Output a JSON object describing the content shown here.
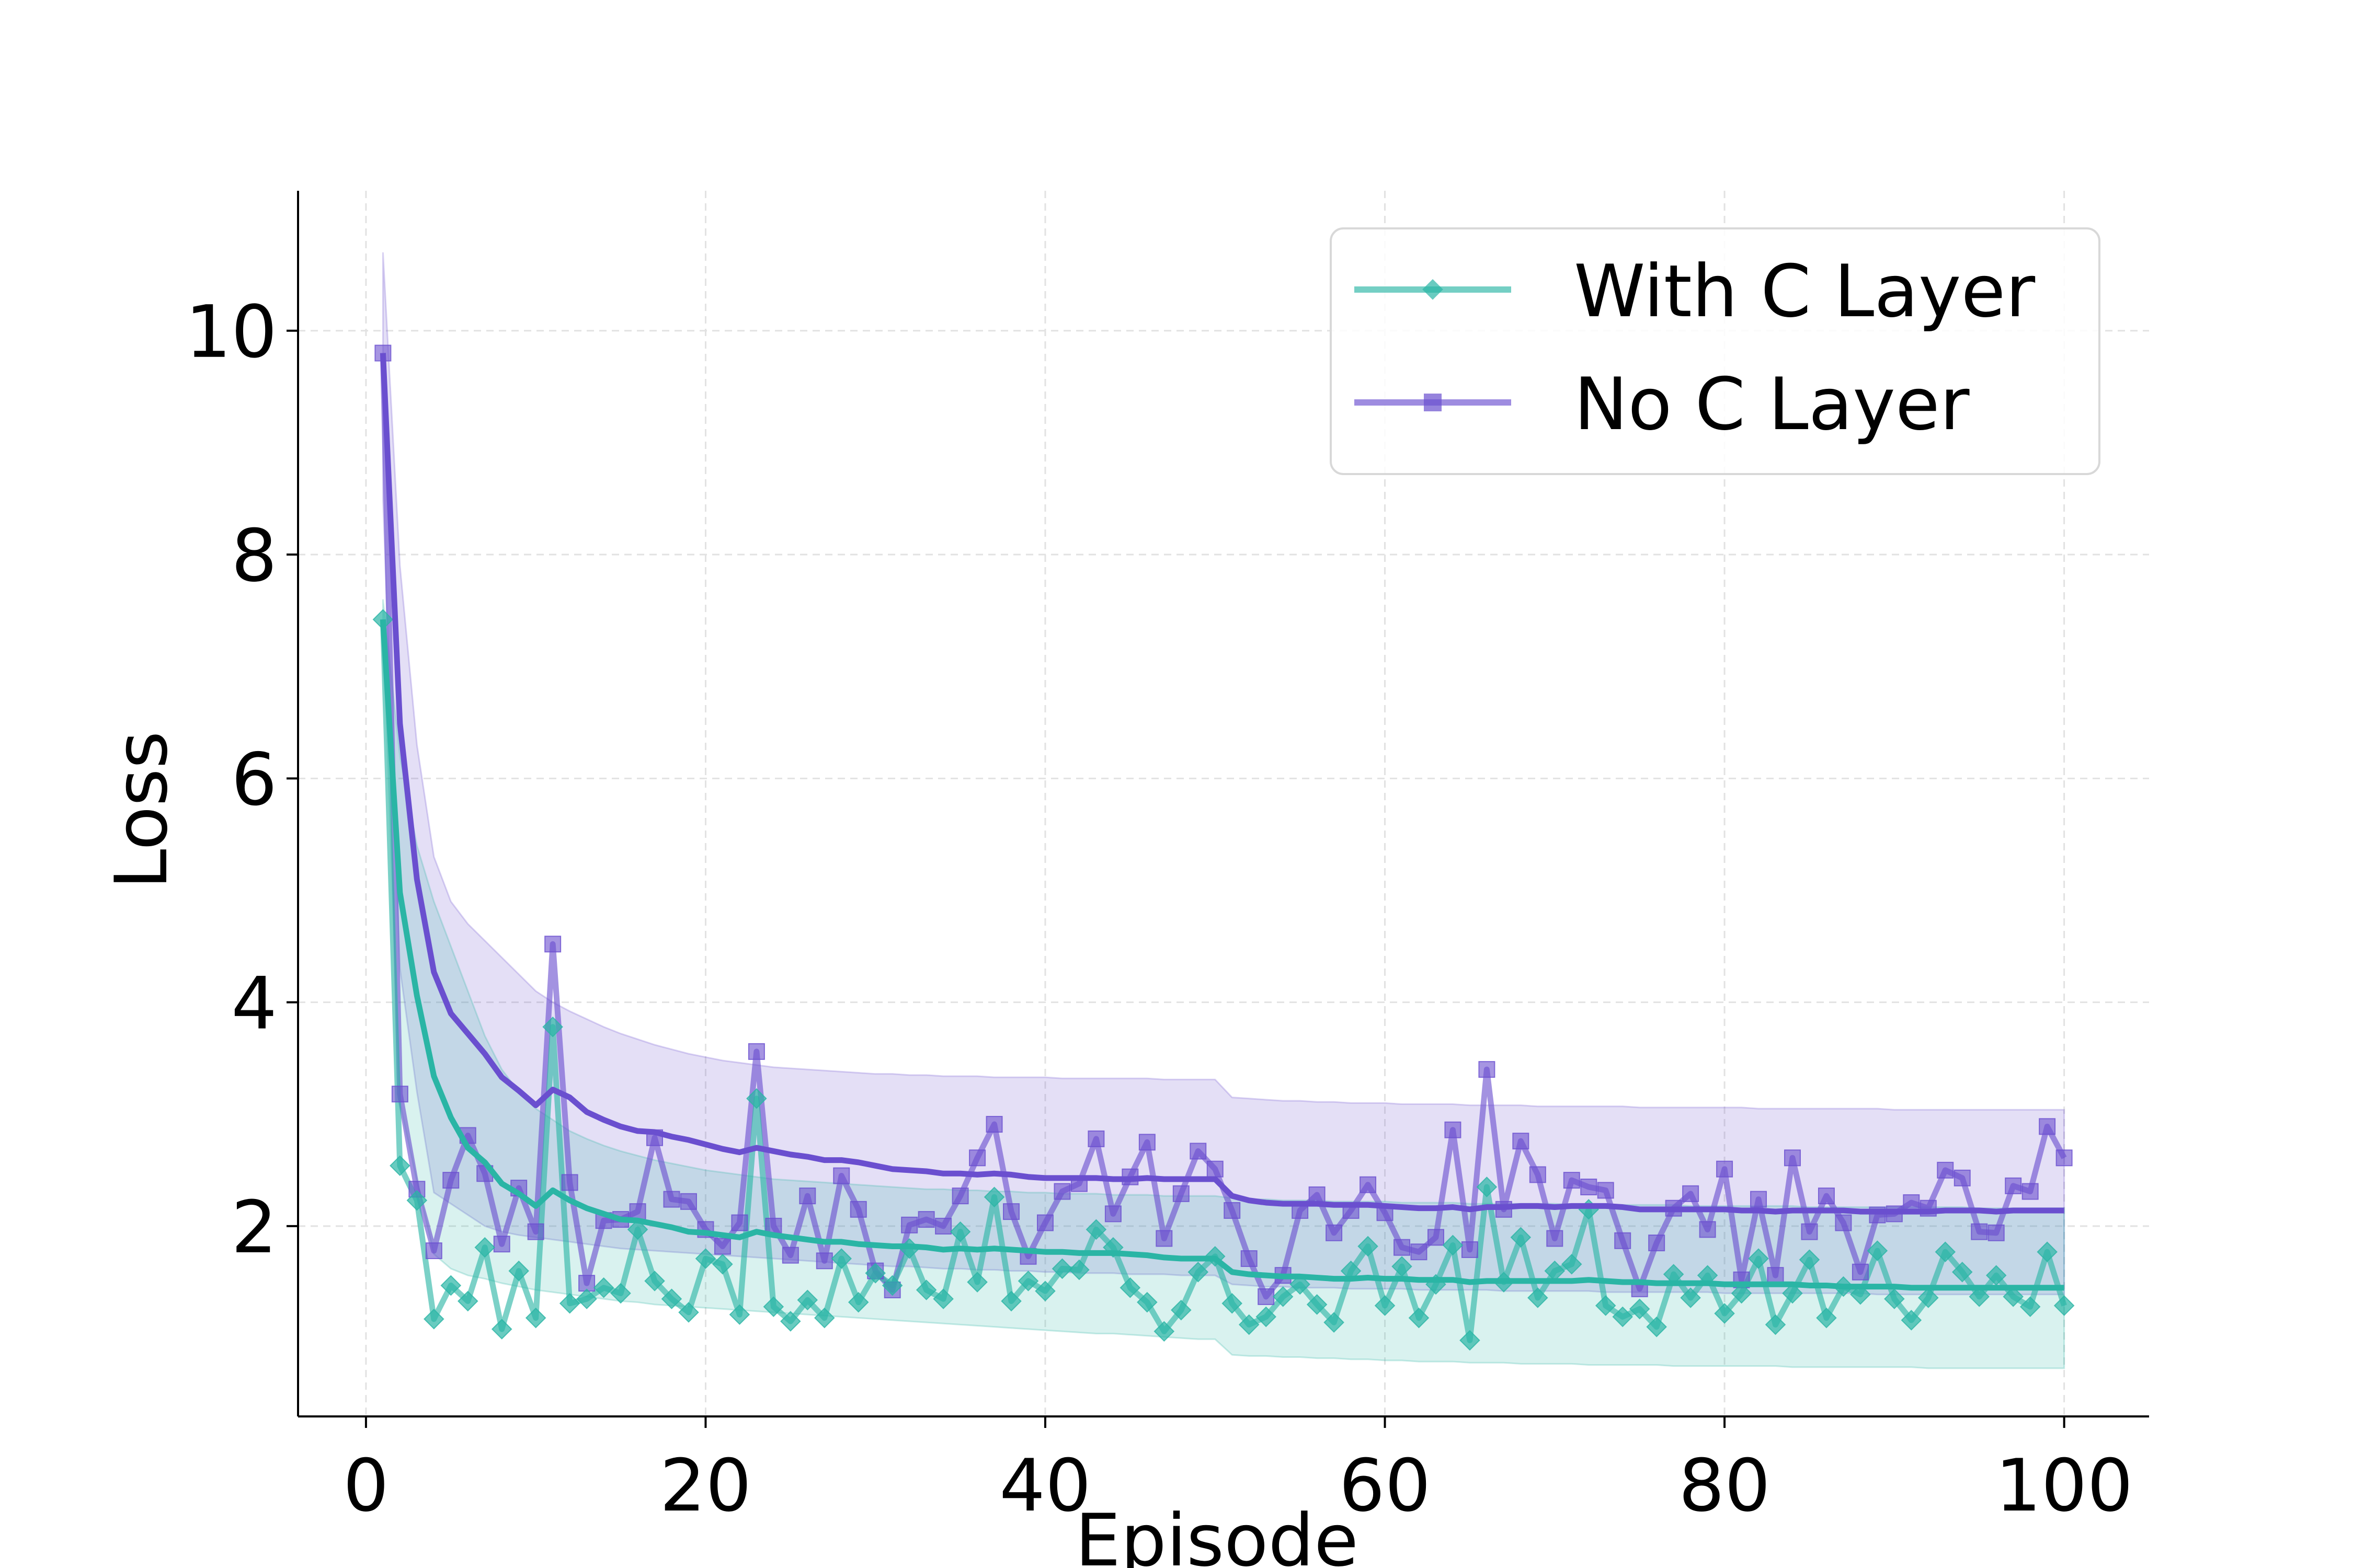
{
  "chart_data": {
    "type": "line",
    "title": "",
    "xlabel": "Episode",
    "ylabel": "Loss",
    "xlim": [
      -4,
      105
    ],
    "ylim": [
      0.3,
      11.25
    ],
    "xticks": [
      0,
      20,
      40,
      60,
      80,
      100
    ],
    "yticks": [
      2,
      4,
      6,
      8,
      10
    ],
    "grid": true,
    "legend_position": "top-right",
    "series": [
      {
        "name": "With C Layer",
        "color": "#2ab5a5",
        "marker": "diamond",
        "raw": [
          7.42,
          2.54,
          2.23,
          1.17,
          1.47,
          1.33,
          1.81,
          1.08,
          1.6,
          1.18,
          3.78,
          1.31,
          1.35,
          1.45,
          1.4,
          1.97,
          1.51,
          1.35,
          1.23,
          1.71,
          1.66,
          1.21,
          3.14,
          1.28,
          1.15,
          1.34,
          1.18,
          1.71,
          1.32,
          1.58,
          1.47,
          1.8,
          1.43,
          1.35,
          1.95,
          1.5,
          2.26,
          1.33,
          1.51,
          1.42,
          1.62,
          1.61,
          1.97,
          1.81,
          1.45,
          1.32,
          1.06,
          1.25,
          1.59,
          1.73,
          1.31,
          1.12,
          1.19,
          1.37,
          1.48,
          1.3,
          1.14,
          1.6,
          1.82,
          1.29,
          1.64,
          1.18,
          1.48,
          1.83,
          0.98,
          2.35,
          1.5,
          1.9,
          1.36,
          1.6,
          1.66,
          2.15,
          1.29,
          1.19,
          1.26,
          1.1,
          1.57,
          1.36,
          1.56,
          1.22,
          1.4,
          1.71,
          1.12,
          1.4,
          1.7,
          1.18,
          1.46,
          1.39,
          1.78,
          1.35,
          1.16,
          1.36,
          1.77,
          1.59,
          1.37,
          1.56,
          1.37,
          1.28,
          1.77,
          1.29
        ],
        "mean": [
          7.42,
          4.98,
          4.06,
          3.34,
          2.97,
          2.7,
          2.57,
          2.38,
          2.29,
          2.18,
          2.32,
          2.23,
          2.16,
          2.11,
          2.06,
          2.05,
          2.02,
          1.99,
          1.95,
          1.94,
          1.92,
          1.9,
          1.95,
          1.92,
          1.9,
          1.88,
          1.86,
          1.86,
          1.84,
          1.83,
          1.82,
          1.82,
          1.81,
          1.79,
          1.8,
          1.79,
          1.8,
          1.79,
          1.78,
          1.77,
          1.77,
          1.76,
          1.76,
          1.76,
          1.75,
          1.74,
          1.72,
          1.71,
          1.71,
          1.71,
          1.59,
          1.57,
          1.56,
          1.55,
          1.55,
          1.54,
          1.53,
          1.53,
          1.54,
          1.53,
          1.53,
          1.52,
          1.52,
          1.52,
          1.5,
          1.51,
          1.51,
          1.51,
          1.51,
          1.51,
          1.51,
          1.52,
          1.51,
          1.5,
          1.5,
          1.49,
          1.49,
          1.49,
          1.49,
          1.48,
          1.48,
          1.48,
          1.48,
          1.48,
          1.47,
          1.47,
          1.46,
          1.46,
          1.46,
          1.46,
          1.45,
          1.45,
          1.45,
          1.45,
          1.45,
          1.45,
          1.45,
          1.45,
          1.45,
          1.45
        ],
        "lower": [
          7.42,
          3.1,
          2.4,
          1.75,
          1.62,
          1.56,
          1.53,
          1.49,
          1.46,
          1.43,
          1.41,
          1.39,
          1.37,
          1.35,
          1.33,
          1.32,
          1.3,
          1.29,
          1.28,
          1.27,
          1.26,
          1.25,
          1.24,
          1.23,
          1.22,
          1.21,
          1.2,
          1.19,
          1.18,
          1.17,
          1.16,
          1.15,
          1.14,
          1.13,
          1.12,
          1.11,
          1.1,
          1.09,
          1.08,
          1.07,
          1.06,
          1.05,
          1.04,
          1.04,
          1.03,
          1.02,
          1.01,
          1.0,
          0.99,
          0.99,
          0.85,
          0.84,
          0.84,
          0.83,
          0.83,
          0.82,
          0.82,
          0.81,
          0.81,
          0.8,
          0.8,
          0.79,
          0.79,
          0.79,
          0.78,
          0.78,
          0.78,
          0.77,
          0.77,
          0.77,
          0.77,
          0.76,
          0.76,
          0.76,
          0.76,
          0.76,
          0.75,
          0.75,
          0.75,
          0.75,
          0.75,
          0.75,
          0.75,
          0.74,
          0.74,
          0.74,
          0.74,
          0.74,
          0.74,
          0.74,
          0.74,
          0.73,
          0.73,
          0.73,
          0.73,
          0.73,
          0.73,
          0.73,
          0.73,
          0.73
        ],
        "upper": [
          7.6,
          6.2,
          5.4,
          4.9,
          4.5,
          4.1,
          3.7,
          3.4,
          3.2,
          3.05,
          2.95,
          2.85,
          2.78,
          2.72,
          2.67,
          2.63,
          2.59,
          2.56,
          2.53,
          2.5,
          2.48,
          2.46,
          2.44,
          2.42,
          2.41,
          2.4,
          2.39,
          2.38,
          2.37,
          2.36,
          2.35,
          2.34,
          2.33,
          2.33,
          2.32,
          2.32,
          2.31,
          2.31,
          2.3,
          2.3,
          2.29,
          2.29,
          2.29,
          2.28,
          2.28,
          2.28,
          2.27,
          2.27,
          2.27,
          2.27,
          2.25,
          2.24,
          2.24,
          2.23,
          2.23,
          2.23,
          2.22,
          2.22,
          2.22,
          2.22,
          2.21,
          2.21,
          2.21,
          2.21,
          2.2,
          2.2,
          2.2,
          2.2,
          2.2,
          2.2,
          2.19,
          2.19,
          2.19,
          2.19,
          2.19,
          2.19,
          2.19,
          2.18,
          2.18,
          2.18,
          2.18,
          2.18,
          2.18,
          2.18,
          2.17,
          2.17,
          2.17,
          2.17,
          2.17,
          2.17,
          2.17,
          2.17,
          2.17,
          2.17,
          2.16,
          2.16,
          2.16,
          2.16,
          2.16,
          2.16
        ]
      },
      {
        "name": "No C Layer",
        "color": "#6a4fcf",
        "marker": "square",
        "raw": [
          9.8,
          3.18,
          2.33,
          1.78,
          2.41,
          2.81,
          2.47,
          1.84,
          2.34,
          1.95,
          4.52,
          2.39,
          1.49,
          2.05,
          2.06,
          2.13,
          2.79,
          2.24,
          2.22,
          1.97,
          1.82,
          2.03,
          3.56,
          2.0,
          1.74,
          2.27,
          1.69,
          2.45,
          2.15,
          1.6,
          1.43,
          2.01,
          2.06,
          2.0,
          2.27,
          2.61,
          2.91,
          2.13,
          1.73,
          2.03,
          2.31,
          2.38,
          2.78,
          2.11,
          2.44,
          2.75,
          1.89,
          2.29,
          2.67,
          2.51,
          2.14,
          1.71,
          1.37,
          1.56,
          2.14,
          2.28,
          1.94,
          2.14,
          2.37,
          2.12,
          1.81,
          1.77,
          1.9,
          2.86,
          1.79,
          3.4,
          2.15,
          2.76,
          2.46,
          1.89,
          2.41,
          2.35,
          2.32,
          1.87,
          1.44,
          1.85,
          2.16,
          2.29,
          1.97,
          2.51,
          1.52,
          2.24,
          1.56,
          2.61,
          1.95,
          2.27,
          2.03,
          1.59,
          2.1,
          2.11,
          2.21,
          2.16,
          2.5,
          2.43,
          1.95,
          1.94,
          2.36,
          2.31,
          2.89,
          2.61
        ],
        "mean": [
          9.8,
          6.49,
          5.1,
          4.27,
          3.9,
          3.72,
          3.54,
          3.33,
          3.21,
          3.08,
          3.22,
          3.15,
          3.02,
          2.95,
          2.89,
          2.85,
          2.84,
          2.8,
          2.77,
          2.73,
          2.69,
          2.66,
          2.7,
          2.67,
          2.64,
          2.62,
          2.59,
          2.59,
          2.57,
          2.54,
          2.51,
          2.5,
          2.49,
          2.47,
          2.47,
          2.46,
          2.47,
          2.46,
          2.44,
          2.43,
          2.43,
          2.43,
          2.43,
          2.42,
          2.42,
          2.43,
          2.42,
          2.42,
          2.42,
          2.42,
          2.27,
          2.23,
          2.21,
          2.2,
          2.2,
          2.2,
          2.19,
          2.19,
          2.19,
          2.18,
          2.17,
          2.16,
          2.16,
          2.17,
          2.15,
          2.17,
          2.17,
          2.18,
          2.18,
          2.17,
          2.18,
          2.18,
          2.18,
          2.17,
          2.15,
          2.15,
          2.15,
          2.15,
          2.15,
          2.15,
          2.14,
          2.14,
          2.13,
          2.14,
          2.14,
          2.14,
          2.14,
          2.13,
          2.13,
          2.13,
          2.13,
          2.13,
          2.14,
          2.14,
          2.14,
          2.13,
          2.14,
          2.14,
          2.14,
          2.14
        ],
        "lower": [
          8.5,
          4.3,
          3.2,
          2.3,
          2.2,
          2.1,
          2.0,
          1.95,
          1.92,
          1.9,
          1.88,
          1.86,
          1.84,
          1.82,
          1.8,
          1.79,
          1.78,
          1.77,
          1.76,
          1.75,
          1.74,
          1.73,
          1.72,
          1.71,
          1.7,
          1.69,
          1.68,
          1.67,
          1.66,
          1.65,
          1.64,
          1.64,
          1.63,
          1.62,
          1.62,
          1.61,
          1.61,
          1.6,
          1.6,
          1.59,
          1.59,
          1.58,
          1.58,
          1.58,
          1.57,
          1.57,
          1.57,
          1.56,
          1.56,
          1.56,
          1.48,
          1.47,
          1.46,
          1.46,
          1.45,
          1.45,
          1.45,
          1.44,
          1.44,
          1.44,
          1.44,
          1.43,
          1.43,
          1.43,
          1.43,
          1.43,
          1.42,
          1.42,
          1.42,
          1.42,
          1.42,
          1.42,
          1.41,
          1.41,
          1.41,
          1.41,
          1.41,
          1.41,
          1.41,
          1.4,
          1.4,
          1.4,
          1.4,
          1.4,
          1.4,
          1.4,
          1.4,
          1.4,
          1.39,
          1.39,
          1.39,
          1.39,
          1.39,
          1.39,
          1.39,
          1.39,
          1.39,
          1.39,
          1.39,
          1.39
        ],
        "upper": [
          10.7,
          7.9,
          6.3,
          5.3,
          4.9,
          4.7,
          4.55,
          4.4,
          4.25,
          4.1,
          4.0,
          3.92,
          3.85,
          3.78,
          3.72,
          3.67,
          3.62,
          3.58,
          3.54,
          3.51,
          3.48,
          3.46,
          3.44,
          3.42,
          3.41,
          3.4,
          3.39,
          3.38,
          3.37,
          3.36,
          3.36,
          3.35,
          3.35,
          3.34,
          3.34,
          3.34,
          3.33,
          3.33,
          3.33,
          3.33,
          3.32,
          3.32,
          3.32,
          3.32,
          3.32,
          3.32,
          3.31,
          3.31,
          3.31,
          3.31,
          3.15,
          3.14,
          3.13,
          3.12,
          3.12,
          3.11,
          3.11,
          3.1,
          3.1,
          3.1,
          3.09,
          3.09,
          3.09,
          3.09,
          3.08,
          3.08,
          3.08,
          3.08,
          3.07,
          3.07,
          3.07,
          3.07,
          3.07,
          3.07,
          3.06,
          3.06,
          3.06,
          3.06,
          3.06,
          3.06,
          3.06,
          3.05,
          3.05,
          3.05,
          3.05,
          3.05,
          3.05,
          3.05,
          3.05,
          3.04,
          3.04,
          3.04,
          3.04,
          3.04,
          3.04,
          3.04,
          3.04,
          3.04,
          3.04,
          3.04
        ]
      }
    ]
  }
}
